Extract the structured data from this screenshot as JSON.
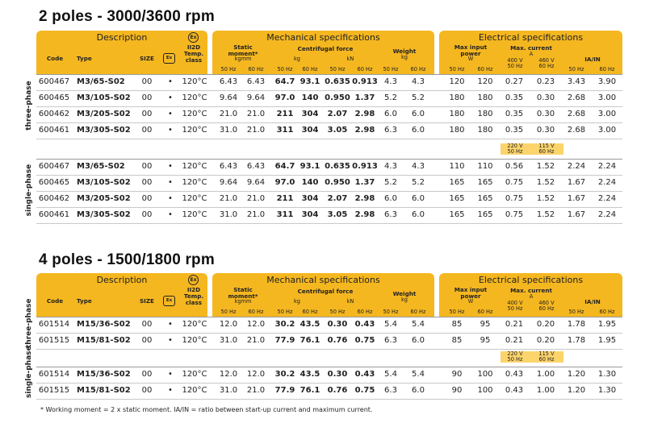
{
  "sections": [
    {
      "title": "2 poles - 3000/3600 rpm",
      "groups": [
        {
          "label": "three-phase",
          "volt_header": null,
          "rows": [
            [
              "600467",
              "M3/65-S02",
              "00",
              "•",
              "120°C",
              "6.43",
              "6.43",
              "64.7",
              "93.1",
              "0.635",
              "0.913",
              "4.3",
              "4.3",
              "120",
              "120",
              "0.27",
              "0.23",
              "3.43",
              "3.90"
            ],
            [
              "600465",
              "M3/105-S02",
              "00",
              "•",
              "120°C",
              "9.64",
              "9.64",
              "97.0",
              "140",
              "0.950",
              "1.37",
              "5.2",
              "5.2",
              "180",
              "180",
              "0.35",
              "0.30",
              "2.68",
              "3.00"
            ],
            [
              "600462",
              "M3/205-S02",
              "00",
              "•",
              "120°C",
              "21.0",
              "21.0",
              "211",
              "304",
              "2.07",
              "2.98",
              "6.0",
              "6.0",
              "180",
              "180",
              "0.35",
              "0.30",
              "2.68",
              "3.00"
            ],
            [
              "600461",
              "M3/305-S02",
              "00",
              "•",
              "120°C",
              "31.0",
              "21.0",
              "311",
              "304",
              "3.05",
              "2.98",
              "6.3",
              "6.0",
              "180",
              "180",
              "0.35",
              "0.30",
              "2.68",
              "3.00"
            ]
          ]
        },
        {
          "label": "single-phase",
          "volt_header": {
            "v1": "220 V",
            "f1": "50 Hz",
            "v2": "115 V",
            "f2": "60 Hz"
          },
          "rows": [
            [
              "600467",
              "M3/65-S02",
              "00",
              "•",
              "120°C",
              "6.43",
              "6.43",
              "64.7",
              "93.1",
              "0.635",
              "0.913",
              "4.3",
              "4.3",
              "110",
              "110",
              "0.56",
              "1.52",
              "2.24",
              "2.24"
            ],
            [
              "600465",
              "M3/105-S02",
              "00",
              "•",
              "120°C",
              "9.64",
              "9.64",
              "97.0",
              "140",
              "0.950",
              "1.37",
              "5.2",
              "5.2",
              "165",
              "165",
              "0.75",
              "1.52",
              "1.67",
              "2.24"
            ],
            [
              "600462",
              "M3/205-S02",
              "00",
              "•",
              "120°C",
              "21.0",
              "21.0",
              "211",
              "304",
              "2.07",
              "2.98",
              "6.0",
              "6.0",
              "165",
              "165",
              "0.75",
              "1.52",
              "1.67",
              "2.24"
            ],
            [
              "600461",
              "M3/305-S02",
              "00",
              "•",
              "120°C",
              "31.0",
              "21.0",
              "311",
              "304",
              "3.05",
              "2.98",
              "6.3",
              "6.0",
              "165",
              "165",
              "0.75",
              "1.52",
              "1.67",
              "2.24"
            ]
          ]
        }
      ]
    },
    {
      "title": "4 poles - 1500/1800 rpm",
      "groups": [
        {
          "label": "three-phase",
          "volt_header": null,
          "rows": [
            [
              "601514",
              "M15/36-S02",
              "00",
              "•",
              "120°C",
              "12.0",
              "12.0",
              "30.2",
              "43.5",
              "0.30",
              "0.43",
              "5.4",
              "5.4",
              "85",
              "95",
              "0.21",
              "0.20",
              "1.78",
              "1.95"
            ],
            [
              "601515",
              "M15/81-S02",
              "00",
              "•",
              "120°C",
              "31.0",
              "21.0",
              "77.9",
              "76.1",
              "0.76",
              "0.75",
              "6.3",
              "6.0",
              "85",
              "95",
              "0.21",
              "0.20",
              "1.78",
              "1.95"
            ]
          ]
        },
        {
          "label": "single-phase",
          "volt_header": {
            "v1": "220 V",
            "f1": "50 Hz",
            "v2": "115 V",
            "f2": "60 Hz"
          },
          "rows": [
            [
              "601514",
              "M15/36-S02",
              "00",
              "•",
              "120°C",
              "12.0",
              "12.0",
              "30.2",
              "43.5",
              "0.30",
              "0.43",
              "5.4",
              "5.4",
              "90",
              "100",
              "0.43",
              "1.00",
              "1.20",
              "1.30"
            ],
            [
              "601515",
              "M15/81-S02",
              "00",
              "•",
              "120°C",
              "31.0",
              "21.0",
              "77.9",
              "76.1",
              "0.76",
              "0.75",
              "6.3",
              "6.0",
              "90",
              "100",
              "0.43",
              "1.00",
              "1.20",
              "1.30"
            ]
          ]
        }
      ]
    }
  ],
  "headers": {
    "description": "Description",
    "code": "Code",
    "type": "Type",
    "size": "SIZE",
    "temp": [
      "II2D",
      "Temp.",
      "class"
    ],
    "ex_icon": "ex-atex-icon",
    "ce_icon": "certification-icon",
    "mechanical": "Mechanical specifications",
    "static": [
      "Static",
      "moment*",
      "kgmm"
    ],
    "centrifugal": "Centrifugal force",
    "kg": "kg",
    "kN": "kN",
    "weight": [
      "Weight",
      "kg"
    ],
    "electrical": "Electrical specifications",
    "max_input": [
      "Max input",
      "power",
      "W"
    ],
    "max_current": [
      "Max. current",
      "A"
    ],
    "v400": [
      "400 V",
      "50 Hz"
    ],
    "v460": [
      "460 V",
      "60 Hz"
    ],
    "ia_in": "IA/IN",
    "hz50": "50 Hz",
    "hz60": "60 Hz"
  },
  "footnote": "* Working moment = 2 x static moment.    IA/IN = ratio between start-up current and maximum current."
}
